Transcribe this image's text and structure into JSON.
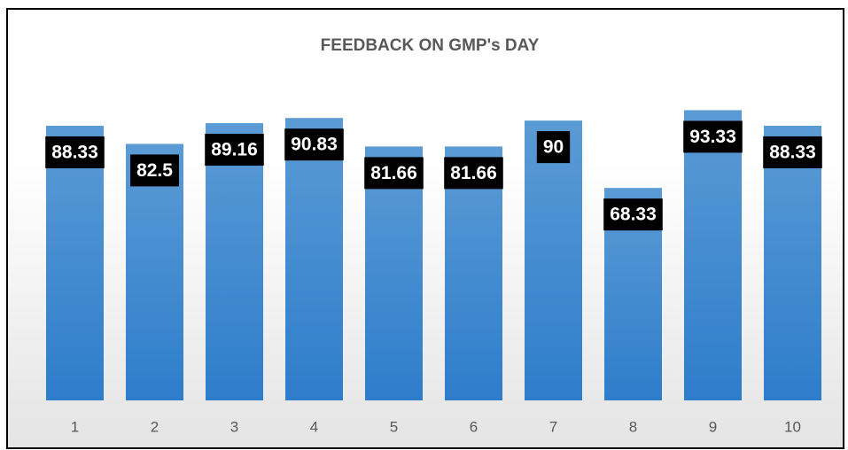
{
  "chart_data": {
    "type": "bar",
    "title": "FEEDBACK ON GMP's DAY",
    "categories": [
      "1",
      "2",
      "3",
      "4",
      "5",
      "6",
      "7",
      "8",
      "9",
      "10"
    ],
    "values": [
      88.33,
      82.5,
      89.16,
      90.83,
      81.66,
      81.66,
      90,
      68.33,
      93.33,
      88.33
    ],
    "color": "#5b9bd5",
    "ylim": [
      0,
      100
    ]
  }
}
